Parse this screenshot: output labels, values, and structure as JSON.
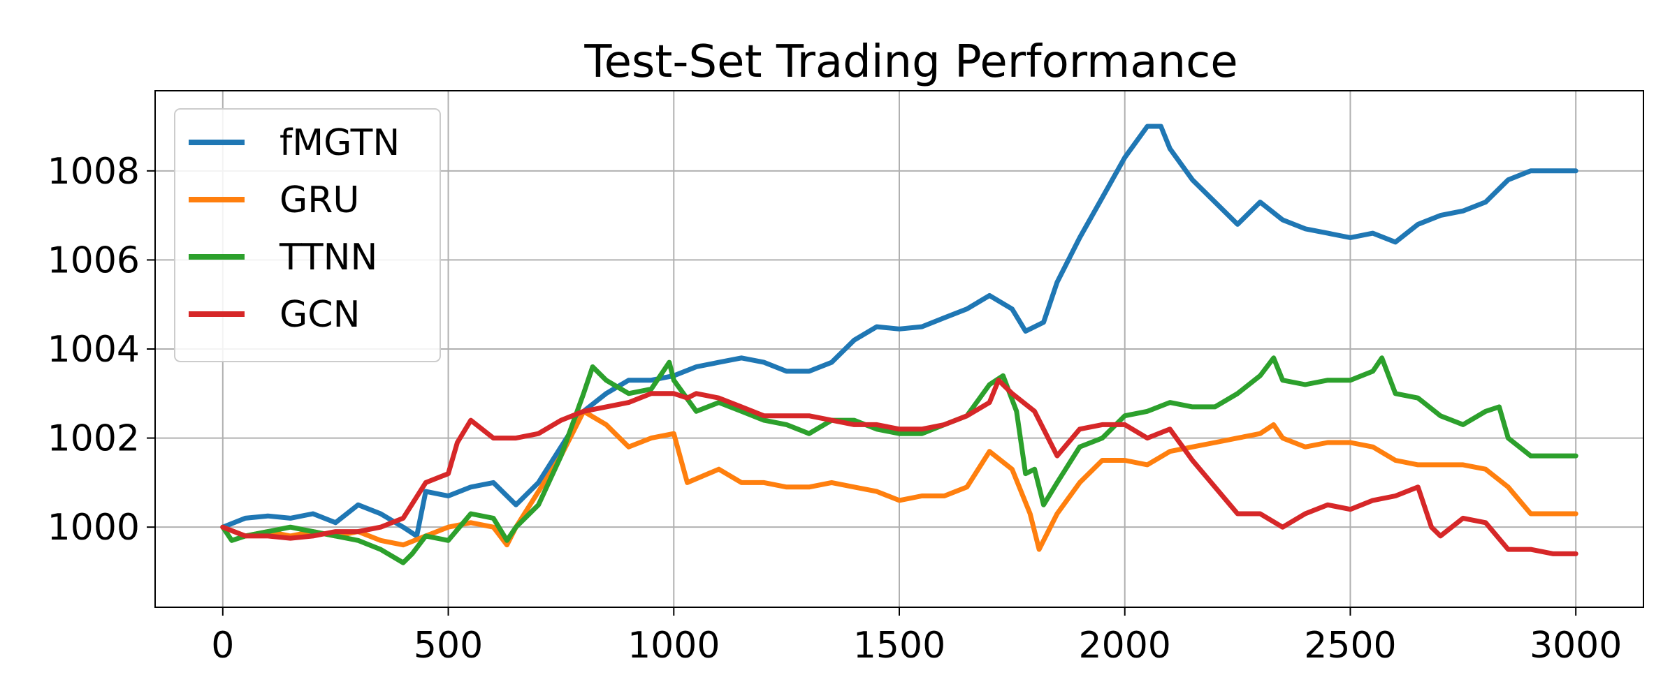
{
  "chart_data": {
    "type": "line",
    "title": "Test-Set Trading Performance",
    "xlabel": "",
    "ylabel": "",
    "xlim": [
      -150,
      3150
    ],
    "ylim": [
      998.2,
      1009.8
    ],
    "xticks": [
      0,
      500,
      1000,
      1500,
      2000,
      2500,
      3000
    ],
    "yticks": [
      1000,
      1002,
      1004,
      1006,
      1008
    ],
    "grid": true,
    "legend_position": "top-left",
    "series": [
      {
        "name": "fMGTN",
        "color": "#1f77b4",
        "points": [
          [
            0,
            1000.0
          ],
          [
            50,
            1000.2
          ],
          [
            100,
            1000.25
          ],
          [
            150,
            1000.2
          ],
          [
            200,
            1000.3
          ],
          [
            250,
            1000.1
          ],
          [
            300,
            1000.5
          ],
          [
            350,
            1000.3
          ],
          [
            400,
            1000.0
          ],
          [
            430,
            999.8
          ],
          [
            450,
            1000.8
          ],
          [
            500,
            1000.7
          ],
          [
            550,
            1000.9
          ],
          [
            600,
            1001.0
          ],
          [
            650,
            1000.5
          ],
          [
            700,
            1001.0
          ],
          [
            750,
            1001.8
          ],
          [
            800,
            1002.6
          ],
          [
            850,
            1003.0
          ],
          [
            900,
            1003.3
          ],
          [
            950,
            1003.3
          ],
          [
            1000,
            1003.4
          ],
          [
            1050,
            1003.6
          ],
          [
            1100,
            1003.7
          ],
          [
            1150,
            1003.8
          ],
          [
            1200,
            1003.7
          ],
          [
            1250,
            1003.5
          ],
          [
            1300,
            1003.5
          ],
          [
            1350,
            1003.7
          ],
          [
            1400,
            1004.2
          ],
          [
            1450,
            1004.5
          ],
          [
            1500,
            1004.45
          ],
          [
            1550,
            1004.5
          ],
          [
            1600,
            1004.7
          ],
          [
            1650,
            1004.9
          ],
          [
            1700,
            1005.2
          ],
          [
            1750,
            1004.9
          ],
          [
            1780,
            1004.4
          ],
          [
            1820,
            1004.6
          ],
          [
            1850,
            1005.5
          ],
          [
            1900,
            1006.5
          ],
          [
            1950,
            1007.4
          ],
          [
            2000,
            1008.3
          ],
          [
            2050,
            1009.0
          ],
          [
            2080,
            1009.0
          ],
          [
            2100,
            1008.5
          ],
          [
            2150,
            1007.8
          ],
          [
            2200,
            1007.3
          ],
          [
            2250,
            1006.8
          ],
          [
            2300,
            1007.3
          ],
          [
            2350,
            1006.9
          ],
          [
            2400,
            1006.7
          ],
          [
            2450,
            1006.6
          ],
          [
            2500,
            1006.5
          ],
          [
            2550,
            1006.6
          ],
          [
            2600,
            1006.4
          ],
          [
            2650,
            1006.8
          ],
          [
            2700,
            1007.0
          ],
          [
            2750,
            1007.1
          ],
          [
            2800,
            1007.3
          ],
          [
            2850,
            1007.8
          ],
          [
            2900,
            1008.0
          ],
          [
            2950,
            1008.0
          ],
          [
            3000,
            1008.0
          ]
        ]
      },
      {
        "name": "GRU",
        "color": "#ff7f0e",
        "points": [
          [
            0,
            1000.0
          ],
          [
            50,
            999.8
          ],
          [
            100,
            999.9
          ],
          [
            150,
            999.8
          ],
          [
            200,
            999.9
          ],
          [
            250,
            999.8
          ],
          [
            300,
            999.9
          ],
          [
            350,
            999.7
          ],
          [
            400,
            999.6
          ],
          [
            450,
            999.8
          ],
          [
            500,
            1000.0
          ],
          [
            550,
            1000.1
          ],
          [
            600,
            1000.0
          ],
          [
            630,
            999.6
          ],
          [
            650,
            1000.0
          ],
          [
            700,
            1000.8
          ],
          [
            750,
            1001.6
          ],
          [
            800,
            1002.6
          ],
          [
            850,
            1002.3
          ],
          [
            900,
            1001.8
          ],
          [
            950,
            1002.0
          ],
          [
            1000,
            1002.1
          ],
          [
            1030,
            1001.0
          ],
          [
            1100,
            1001.3
          ],
          [
            1150,
            1001.0
          ],
          [
            1200,
            1001.0
          ],
          [
            1250,
            1000.9
          ],
          [
            1300,
            1000.9
          ],
          [
            1350,
            1001.0
          ],
          [
            1400,
            1000.9
          ],
          [
            1450,
            1000.8
          ],
          [
            1500,
            1000.6
          ],
          [
            1550,
            1000.7
          ],
          [
            1600,
            1000.7
          ],
          [
            1650,
            1000.9
          ],
          [
            1700,
            1001.7
          ],
          [
            1750,
            1001.3
          ],
          [
            1790,
            1000.3
          ],
          [
            1810,
            999.5
          ],
          [
            1850,
            1000.3
          ],
          [
            1900,
            1001.0
          ],
          [
            1950,
            1001.5
          ],
          [
            2000,
            1001.5
          ],
          [
            2050,
            1001.4
          ],
          [
            2100,
            1001.7
          ],
          [
            2150,
            1001.8
          ],
          [
            2200,
            1001.9
          ],
          [
            2250,
            1002.0
          ],
          [
            2300,
            1002.1
          ],
          [
            2330,
            1002.3
          ],
          [
            2350,
            1002.0
          ],
          [
            2400,
            1001.8
          ],
          [
            2450,
            1001.9
          ],
          [
            2500,
            1001.9
          ],
          [
            2550,
            1001.8
          ],
          [
            2600,
            1001.5
          ],
          [
            2650,
            1001.4
          ],
          [
            2700,
            1001.4
          ],
          [
            2750,
            1001.4
          ],
          [
            2800,
            1001.3
          ],
          [
            2850,
            1000.9
          ],
          [
            2900,
            1000.3
          ],
          [
            2950,
            1000.3
          ],
          [
            3000,
            1000.3
          ]
        ]
      },
      {
        "name": "TTNN",
        "color": "#2ca02c",
        "points": [
          [
            0,
            1000.0
          ],
          [
            20,
            999.7
          ],
          [
            50,
            999.8
          ],
          [
            100,
            999.9
          ],
          [
            150,
            1000.0
          ],
          [
            200,
            999.9
          ],
          [
            250,
            999.8
          ],
          [
            300,
            999.7
          ],
          [
            350,
            999.5
          ],
          [
            400,
            999.2
          ],
          [
            420,
            999.4
          ],
          [
            450,
            999.8
          ],
          [
            500,
            999.7
          ],
          [
            550,
            1000.3
          ],
          [
            600,
            1000.2
          ],
          [
            630,
            999.7
          ],
          [
            650,
            1000.0
          ],
          [
            700,
            1000.5
          ],
          [
            750,
            1001.6
          ],
          [
            800,
            1003.0
          ],
          [
            820,
            1003.6
          ],
          [
            850,
            1003.3
          ],
          [
            900,
            1003.0
          ],
          [
            950,
            1003.1
          ],
          [
            990,
            1003.7
          ],
          [
            1000,
            1003.3
          ],
          [
            1050,
            1002.6
          ],
          [
            1100,
            1002.8
          ],
          [
            1150,
            1002.6
          ],
          [
            1200,
            1002.4
          ],
          [
            1250,
            1002.3
          ],
          [
            1300,
            1002.1
          ],
          [
            1350,
            1002.4
          ],
          [
            1400,
            1002.4
          ],
          [
            1450,
            1002.2
          ],
          [
            1500,
            1002.1
          ],
          [
            1550,
            1002.1
          ],
          [
            1600,
            1002.3
          ],
          [
            1650,
            1002.5
          ],
          [
            1700,
            1003.2
          ],
          [
            1730,
            1003.4
          ],
          [
            1760,
            1002.6
          ],
          [
            1780,
            1001.2
          ],
          [
            1800,
            1001.3
          ],
          [
            1820,
            1000.5
          ],
          [
            1850,
            1001.0
          ],
          [
            1900,
            1001.8
          ],
          [
            1950,
            1002.0
          ],
          [
            2000,
            1002.5
          ],
          [
            2050,
            1002.6
          ],
          [
            2100,
            1002.8
          ],
          [
            2150,
            1002.7
          ],
          [
            2200,
            1002.7
          ],
          [
            2250,
            1003.0
          ],
          [
            2300,
            1003.4
          ],
          [
            2330,
            1003.8
          ],
          [
            2350,
            1003.3
          ],
          [
            2400,
            1003.2
          ],
          [
            2450,
            1003.3
          ],
          [
            2500,
            1003.3
          ],
          [
            2550,
            1003.5
          ],
          [
            2570,
            1003.8
          ],
          [
            2600,
            1003.0
          ],
          [
            2650,
            1002.9
          ],
          [
            2700,
            1002.5
          ],
          [
            2750,
            1002.3
          ],
          [
            2800,
            1002.6
          ],
          [
            2830,
            1002.7
          ],
          [
            2850,
            1002.0
          ],
          [
            2900,
            1001.6
          ],
          [
            2950,
            1001.6
          ],
          [
            3000,
            1001.6
          ]
        ]
      },
      {
        "name": "GCN",
        "color": "#d62728",
        "points": [
          [
            0,
            1000.0
          ],
          [
            50,
            999.8
          ],
          [
            100,
            999.8
          ],
          [
            150,
            999.75
          ],
          [
            200,
            999.8
          ],
          [
            250,
            999.9
          ],
          [
            300,
            999.9
          ],
          [
            350,
            1000.0
          ],
          [
            400,
            1000.2
          ],
          [
            450,
            1001.0
          ],
          [
            500,
            1001.2
          ],
          [
            520,
            1001.9
          ],
          [
            550,
            1002.4
          ],
          [
            600,
            1002.0
          ],
          [
            650,
            1002.0
          ],
          [
            700,
            1002.1
          ],
          [
            750,
            1002.4
          ],
          [
            800,
            1002.6
          ],
          [
            850,
            1002.7
          ],
          [
            900,
            1002.8
          ],
          [
            950,
            1003.0
          ],
          [
            1000,
            1003.0
          ],
          [
            1030,
            1002.9
          ],
          [
            1050,
            1003.0
          ],
          [
            1100,
            1002.9
          ],
          [
            1150,
            1002.7
          ],
          [
            1200,
            1002.5
          ],
          [
            1250,
            1002.5
          ],
          [
            1300,
            1002.5
          ],
          [
            1350,
            1002.4
          ],
          [
            1400,
            1002.3
          ],
          [
            1450,
            1002.3
          ],
          [
            1500,
            1002.2
          ],
          [
            1550,
            1002.2
          ],
          [
            1600,
            1002.3
          ],
          [
            1650,
            1002.5
          ],
          [
            1700,
            1002.8
          ],
          [
            1720,
            1003.3
          ],
          [
            1750,
            1003.0
          ],
          [
            1800,
            1002.6
          ],
          [
            1850,
            1001.6
          ],
          [
            1900,
            1002.2
          ],
          [
            1950,
            1002.3
          ],
          [
            2000,
            1002.3
          ],
          [
            2050,
            1002.0
          ],
          [
            2100,
            1002.2
          ],
          [
            2150,
            1001.5
          ],
          [
            2200,
            1000.9
          ],
          [
            2250,
            1000.3
          ],
          [
            2300,
            1000.3
          ],
          [
            2350,
            1000.0
          ],
          [
            2400,
            1000.3
          ],
          [
            2450,
            1000.5
          ],
          [
            2500,
            1000.4
          ],
          [
            2550,
            1000.6
          ],
          [
            2600,
            1000.7
          ],
          [
            2650,
            1000.9
          ],
          [
            2680,
            1000.0
          ],
          [
            2700,
            999.8
          ],
          [
            2750,
            1000.2
          ],
          [
            2800,
            1000.1
          ],
          [
            2850,
            999.5
          ],
          [
            2900,
            999.5
          ],
          [
            2950,
            999.4
          ],
          [
            3000,
            999.4
          ]
        ]
      }
    ]
  }
}
